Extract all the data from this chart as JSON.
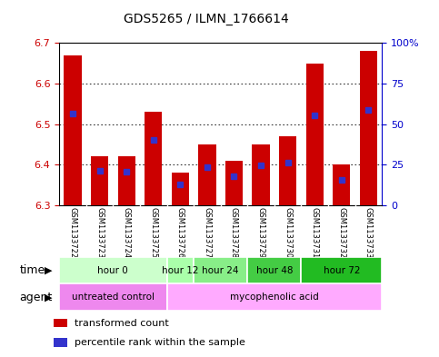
{
  "title": "GDS5265 / ILMN_1766614",
  "samples": [
    "GSM1133722",
    "GSM1133723",
    "GSM1133724",
    "GSM1133725",
    "GSM1133726",
    "GSM1133727",
    "GSM1133728",
    "GSM1133729",
    "GSM1133730",
    "GSM1133731",
    "GSM1133732",
    "GSM1133733"
  ],
  "bar_bottoms": [
    6.3,
    6.3,
    6.3,
    6.3,
    6.3,
    6.3,
    6.3,
    6.3,
    6.3,
    6.3,
    6.3,
    6.3
  ],
  "bar_tops": [
    6.67,
    6.42,
    6.42,
    6.53,
    6.38,
    6.45,
    6.41,
    6.45,
    6.47,
    6.65,
    6.4,
    6.68
  ],
  "percentile_values": [
    6.525,
    6.385,
    6.382,
    6.46,
    6.352,
    6.395,
    6.372,
    6.398,
    6.405,
    6.522,
    6.362,
    6.535
  ],
  "ylim_left": [
    6.3,
    6.7
  ],
  "yticks_left": [
    6.3,
    6.4,
    6.5,
    6.6,
    6.7
  ],
  "yticks_right": [
    0,
    25,
    50,
    75,
    100
  ],
  "bar_color": "#cc0000",
  "blue_color": "#3333cc",
  "grid_color": "#000000",
  "tick_color_left": "#cc0000",
  "tick_color_right": "#0000cc",
  "background_tick_area": "#c8c8c8",
  "time_groups": [
    {
      "label": "hour 0",
      "start": 0,
      "end": 4,
      "color": "#ccffcc"
    },
    {
      "label": "hour 12",
      "start": 4,
      "end": 5,
      "color": "#aaffaa"
    },
    {
      "label": "hour 24",
      "start": 5,
      "end": 7,
      "color": "#88ee88"
    },
    {
      "label": "hour 48",
      "start": 7,
      "end": 9,
      "color": "#44cc44"
    },
    {
      "label": "hour 72",
      "start": 9,
      "end": 12,
      "color": "#22bb22"
    }
  ],
  "agent_groups": [
    {
      "label": "untreated control",
      "start": 0,
      "end": 4,
      "color": "#ee88ee"
    },
    {
      "label": "mycophenolic acid",
      "start": 4,
      "end": 12,
      "color": "#ffaaff"
    }
  ],
  "legend_items": [
    {
      "color": "#cc0000",
      "label": "transformed count"
    },
    {
      "color": "#3333cc",
      "label": "percentile rank within the sample"
    }
  ]
}
